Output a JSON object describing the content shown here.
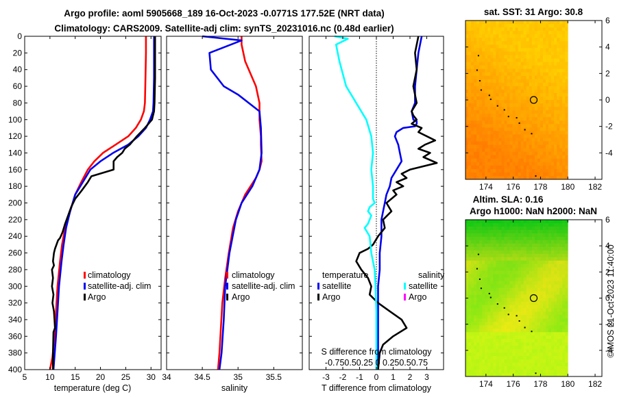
{
  "titles": {
    "line1": "Argo profile: aoml 5905668_189 16-Oct-2023 -0.0771S 177.52E (NRT data)",
    "line2": "Climatology: CARS2009. Satellite-adj clim: synTS_20231016.nc (0.48d earlier)",
    "map1": "sat. SST: 31 Argo: 30.8",
    "map2a": "Altim. SLA: 0.16",
    "map2b": "Argo h1000: NaN h2000: NaN"
  },
  "side_label": "©IMOS 21-Oct-2023 11:40:00",
  "colors": {
    "clim": "#ff0000",
    "sat": "#0000ee",
    "argo": "#000000",
    "tsat": "#00ffff",
    "sargo": "#ff00ff"
  },
  "legends": {
    "temp": [
      "climatology",
      "satellite-adj. clim",
      "Argo"
    ],
    "sal": [
      "climatology",
      "satellite-adj. clim",
      "Argo"
    ],
    "diff_t_head": "temperature",
    "diff_s_head": "salinity",
    "diff_t": [
      "satellite",
      "Argo"
    ],
    "diff_s": [
      "satellite",
      "Argo"
    ],
    "diff_s_title": "S difference from climatology",
    "diff_s_ticks": "-0.750.50.25 0 0.250.50.75"
  },
  "chart_data": [
    {
      "type": "line",
      "name": "temperature",
      "xlabel": "temperature (deg C)",
      "ylabel": "",
      "xlim": [
        5,
        32
      ],
      "ylim": [
        400,
        0
      ],
      "xticks": [
        5,
        10,
        15,
        20,
        25,
        30
      ],
      "yticks": [
        0,
        20,
        40,
        60,
        80,
        100,
        120,
        140,
        160,
        180,
        200,
        220,
        240,
        260,
        280,
        300,
        320,
        340,
        360,
        380,
        400
      ],
      "series": [
        {
          "name": "climatology",
          "color": "#ff0000",
          "x": [
            29.0,
            29.0,
            28.9,
            28.8,
            28.6,
            28.0,
            27.0,
            25.5,
            23.0,
            20.5,
            18.8,
            17.5,
            16.2,
            15.0,
            14.0,
            13.0,
            12.4,
            12.0,
            11.5,
            11.2,
            10.9,
            10.5,
            10.0
          ],
          "y": [
            0,
            20,
            50,
            80,
            90,
            100,
            110,
            120,
            130,
            140,
            150,
            160,
            175,
            190,
            210,
            230,
            250,
            270,
            300,
            330,
            360,
            385,
            400
          ]
        },
        {
          "name": "satellite-adj. clim",
          "color": "#0000ee",
          "x": [
            30.6,
            30.6,
            30.6,
            30.5,
            30.4,
            29.8,
            29.0,
            27.5,
            25.5,
            22.5,
            20.0,
            18.0,
            16.5,
            15.0,
            14.0,
            13.2,
            12.7,
            12.3,
            11.8,
            11.5,
            11.2,
            10.7
          ],
          "y": [
            0,
            20,
            50,
            80,
            90,
            100,
            110,
            120,
            130,
            140,
            150,
            160,
            175,
            190,
            210,
            230,
            250,
            270,
            300,
            330,
            360,
            400
          ]
        },
        {
          "name": "Argo",
          "color": "#000000",
          "x": [
            30.8,
            30.8,
            30.8,
            30.7,
            30.6,
            30.2,
            29.5,
            28.8,
            28.0,
            27.2,
            26.5,
            25.8,
            24.8,
            24.3,
            23.3,
            22.6,
            22.6,
            18.2,
            17.5,
            16.3,
            15.0,
            14.2,
            13.6,
            13.0,
            12.5,
            12.0,
            11.6,
            11.3,
            11.0,
            10.8,
            10.6,
            10.8,
            10.4,
            10.6,
            10.4,
            10.7,
            10.5,
            10.8,
            10.9,
            11.0,
            10.7,
            10.6,
            10.6
          ],
          "y": [
            0,
            20,
            50,
            80,
            90,
            100,
            105,
            110,
            115,
            120,
            125,
            130,
            135,
            140,
            145,
            150,
            160,
            168,
            175,
            185,
            195,
            205,
            215,
            225,
            235,
            242,
            245,
            250,
            255,
            260,
            270,
            275,
            280,
            290,
            300,
            310,
            320,
            330,
            340,
            350,
            355,
            380,
            400
          ]
        }
      ]
    },
    {
      "type": "line",
      "name": "salinity",
      "xlabel": "salinity",
      "ylabel": "",
      "xlim": [
        34,
        35.9
      ],
      "ylim": [
        400,
        0
      ],
      "xticks": [
        34,
        34.5,
        35,
        35.5
      ],
      "series": [
        {
          "name": "climatology",
          "color": "#ff0000",
          "x": [
            35.05,
            35.05,
            35.1,
            35.25,
            35.3,
            35.3,
            35.32,
            35.32,
            35.33,
            35.3,
            35.25,
            35.1,
            35.0,
            34.93,
            34.87,
            34.82,
            34.78,
            34.76,
            34.74,
            34.72
          ],
          "y": [
            0,
            10,
            30,
            60,
            80,
            100,
            120,
            130,
            150,
            160,
            170,
            190,
            210,
            230,
            260,
            290,
            320,
            350,
            380,
            400
          ]
        },
        {
          "name": "satellite-adj. clim",
          "color": "#0000ee",
          "x": [
            34.5,
            35.05,
            34.6,
            34.62,
            34.8,
            35.0,
            35.3,
            35.32,
            35.33,
            35.3,
            35.2,
            35.05,
            34.97,
            34.88,
            34.82,
            34.8,
            34.77,
            34.74
          ],
          "y": [
            0,
            5,
            20,
            40,
            60,
            70,
            90,
            110,
            140,
            160,
            180,
            200,
            220,
            260,
            300,
            340,
            380,
            400
          ]
        }
      ]
    },
    {
      "type": "line",
      "name": "temperature difference from climatology",
      "xlabel": "T difference from climatology",
      "ylabel": "",
      "xlim": [
        -4,
        4
      ],
      "ylim": [
        400,
        0
      ],
      "xticks": [
        -3,
        -2,
        -1,
        0,
        1,
        2,
        3
      ],
      "secondary_xlabel": "S difference from climatology",
      "secondary_xticks": [
        -0.75,
        -0.5,
        -0.25,
        0,
        0.25,
        0.5,
        0.75
      ],
      "series": [
        {
          "name": "temperature satellite",
          "color": "#0000ee",
          "x": [
            2.7,
            2.5,
            2.4,
            2.3,
            2.3,
            2.1,
            2.2,
            2.4,
            2.4,
            2.3,
            1.6,
            1.2,
            1.1,
            1.3,
            1.4,
            1.5,
            1.2,
            0.9,
            0.8,
            0.6,
            0.5,
            0.4,
            0.3,
            0.3,
            0.2,
            0.2,
            0.1,
            0.1,
            0.1,
            0.1,
            0.1,
            0.1
          ],
          "y": [
            0,
            20,
            40,
            60,
            80,
            90,
            100,
            102,
            105,
            108,
            110,
            115,
            120,
            130,
            140,
            150,
            160,
            170,
            180,
            190,
            200,
            210,
            220,
            240,
            260,
            280,
            300,
            320,
            340,
            360,
            380,
            400
          ]
        },
        {
          "name": "temperature Argo",
          "color": "#000000",
          "x": [
            2.5,
            2.3,
            2.4,
            2.2,
            2.4,
            2.1,
            2.2,
            2.4,
            2.1,
            2.7,
            2.5,
            3.0,
            3.5,
            2.9,
            2.5,
            3.2,
            2.8,
            3.6,
            2.0,
            1.5,
            1.8,
            1.2,
            1.6,
            1.0,
            1.2,
            0.6,
            0.9,
            0.4,
            0.5,
            0.1,
            -0.2,
            -0.5,
            -1.0,
            -1.2,
            -0.9,
            -0.5,
            -0.3,
            -0.4,
            0.1,
            0.8,
            1.5,
            1.8,
            1.0,
            0.4,
            0.2,
            0.1
          ],
          "y": [
            0,
            20,
            40,
            60,
            80,
            90,
            95,
            100,
            105,
            110,
            115,
            120,
            125,
            130,
            135,
            140,
            145,
            152,
            160,
            165,
            170,
            175,
            180,
            185,
            190,
            200,
            210,
            220,
            230,
            240,
            250,
            255,
            260,
            270,
            280,
            290,
            300,
            310,
            320,
            330,
            340,
            350,
            360,
            370,
            380,
            400
          ]
        },
        {
          "name": "salinity satellite",
          "color": "#00ffff",
          "x": [
            -2.5,
            -1.7,
            -2.4,
            -2.2,
            -1.8,
            -1.2,
            -0.6,
            -0.3,
            -0.2,
            -0.3,
            -0.2,
            -0.2,
            -0.1,
            -0.4,
            -0.5,
            -0.3,
            -0.4,
            -0.5,
            -0.7,
            -0.4,
            -0.3,
            -0.1,
            -0.05,
            0.0,
            0.0,
            0.0
          ],
          "y": [
            0,
            3,
            10,
            30,
            60,
            80,
            100,
            120,
            140,
            160,
            180,
            195,
            200,
            205,
            210,
            215,
            220,
            225,
            230,
            240,
            260,
            280,
            300,
            330,
            360,
            400
          ]
        }
      ]
    },
    {
      "type": "heatmap",
      "name": "satellite SST map",
      "title": "sat. SST: 31 Argo: 30.8",
      "xlim": [
        172.5,
        182.5
      ],
      "ylim": [
        -6,
        6
      ],
      "xticks": [
        174,
        176,
        178,
        180,
        182
      ],
      "yticks": [
        6,
        4,
        2,
        0,
        -2,
        -4
      ],
      "argo_position": {
        "lon": 177.5,
        "lat": 0
      }
    },
    {
      "type": "heatmap",
      "name": "altimetry SLA map",
      "title": "Altim. SLA: 0.16",
      "xlim": [
        172.5,
        182.5
      ],
      "ylim": [
        -6,
        6
      ],
      "xticks": [
        174,
        176,
        178,
        180,
        182
      ],
      "yticks": [
        6,
        4,
        2,
        0,
        -2,
        -4
      ],
      "argo_position": {
        "lon": 177.5,
        "lat": 0
      }
    }
  ]
}
